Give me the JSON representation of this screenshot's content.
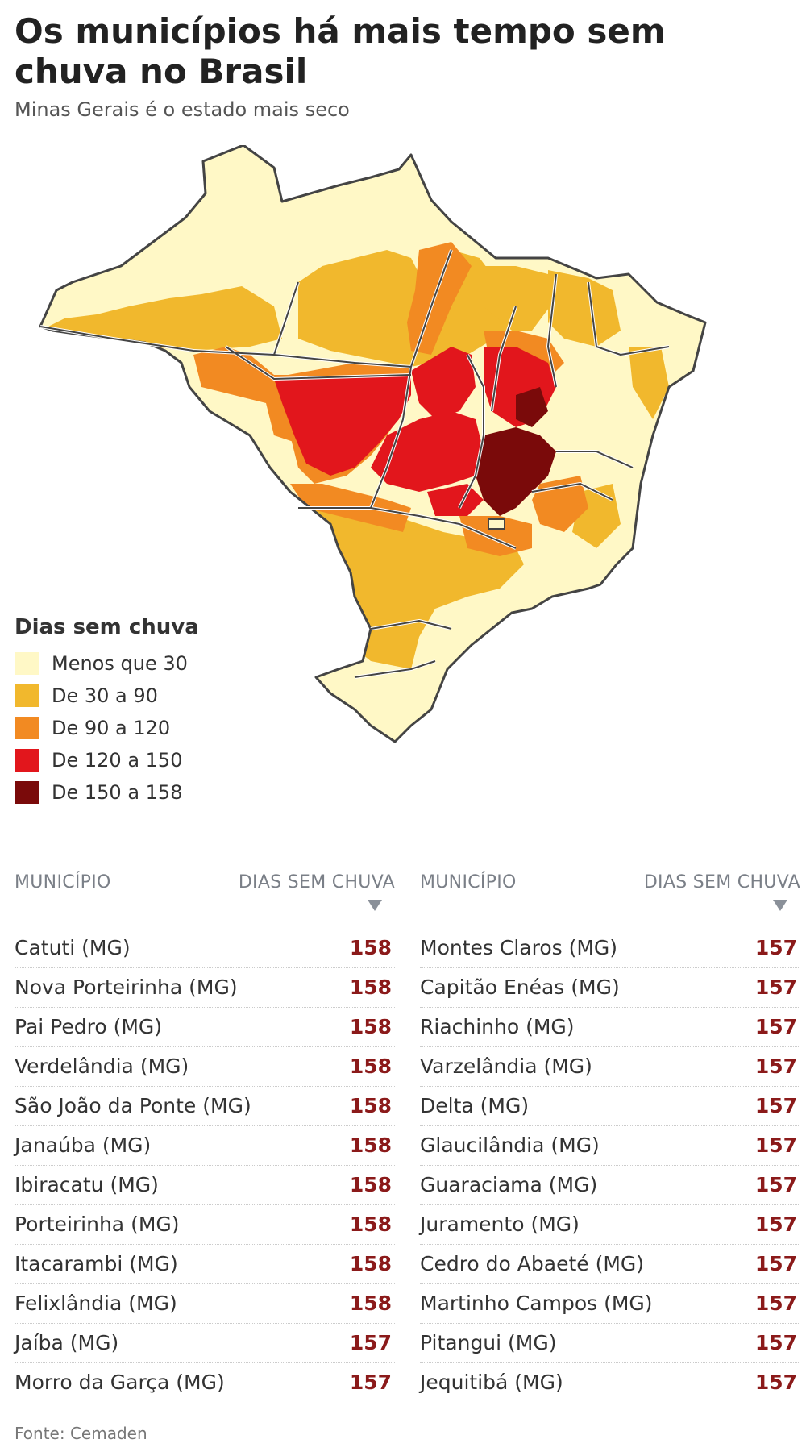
{
  "header": {
    "title": "Os municípios há mais tempo sem chuva no Brasil",
    "subtitle": "Minas Gerais é o estado mais seco"
  },
  "legend": {
    "title": "Dias sem chuva",
    "items": [
      {
        "label": "Menos que 30",
        "color": "#fff8c6"
      },
      {
        "label": "De 30 a 90",
        "color": "#f1b82d"
      },
      {
        "label": "De 90 a 120",
        "color": "#f28a22"
      },
      {
        "label": "De 120 a 150",
        "color": "#e2161c"
      },
      {
        "label": "De 150 a 158",
        "color": "#7a0a0a"
      }
    ]
  },
  "map": {
    "state_border_color": "#444444",
    "dominant_class_by_region": {
      "Amazonas_Pará_Roraima_Amapá_North": "Menos que 30 / De 30 a 90",
      "Mato Grosso_Goiás_Tocantins": "De 90 a 120 / De 120 a 150",
      "Minas Gerais_north_center": "De 150 a 158",
      "Nordeste_coast_South": "Menos que 30 / De 30 a 90"
    }
  },
  "table": {
    "header_name": "MUNICÍPIO",
    "header_value": "DIAS SEM CHUVA",
    "left_rows": [
      {
        "name": "Catuti (MG)",
        "days": "158"
      },
      {
        "name": "Nova Porteirinha (MG)",
        "days": "158"
      },
      {
        "name": "Pai Pedro (MG)",
        "days": "158"
      },
      {
        "name": "Verdelândia (MG)",
        "days": "158"
      },
      {
        "name": "São João da Ponte (MG)",
        "days": "158"
      },
      {
        "name": "Janaúba (MG)",
        "days": "158"
      },
      {
        "name": "Ibiracatu (MG)",
        "days": "158"
      },
      {
        "name": "Porteirinha (MG)",
        "days": "158"
      },
      {
        "name": "Itacarambi (MG)",
        "days": "158"
      },
      {
        "name": "Felixlândia (MG)",
        "days": "158"
      },
      {
        "name": "Jaíba (MG)",
        "days": "157"
      },
      {
        "name": "Morro da Garça (MG)",
        "days": "157"
      }
    ],
    "right_rows": [
      {
        "name": "Montes Claros (MG)",
        "days": "157"
      },
      {
        "name": "Capitão Enéas (MG)",
        "days": "157"
      },
      {
        "name": "Riachinho (MG)",
        "days": "157"
      },
      {
        "name": "Varzelândia (MG)",
        "days": "157"
      },
      {
        "name": "Delta (MG)",
        "days": "157"
      },
      {
        "name": "Glaucilândia (MG)",
        "days": "157"
      },
      {
        "name": "Guaraciama (MG)",
        "days": "157"
      },
      {
        "name": "Juramento (MG)",
        "days": "157"
      },
      {
        "name": "Cedro do Abaeté (MG)",
        "days": "157"
      },
      {
        "name": "Martinho Campos (MG)",
        "days": "157"
      },
      {
        "name": "Pitangui (MG)",
        "days": "157"
      },
      {
        "name": "Jequitibá (MG)",
        "days": "157"
      }
    ]
  },
  "footer": {
    "source": "Fonte: Cemaden"
  }
}
